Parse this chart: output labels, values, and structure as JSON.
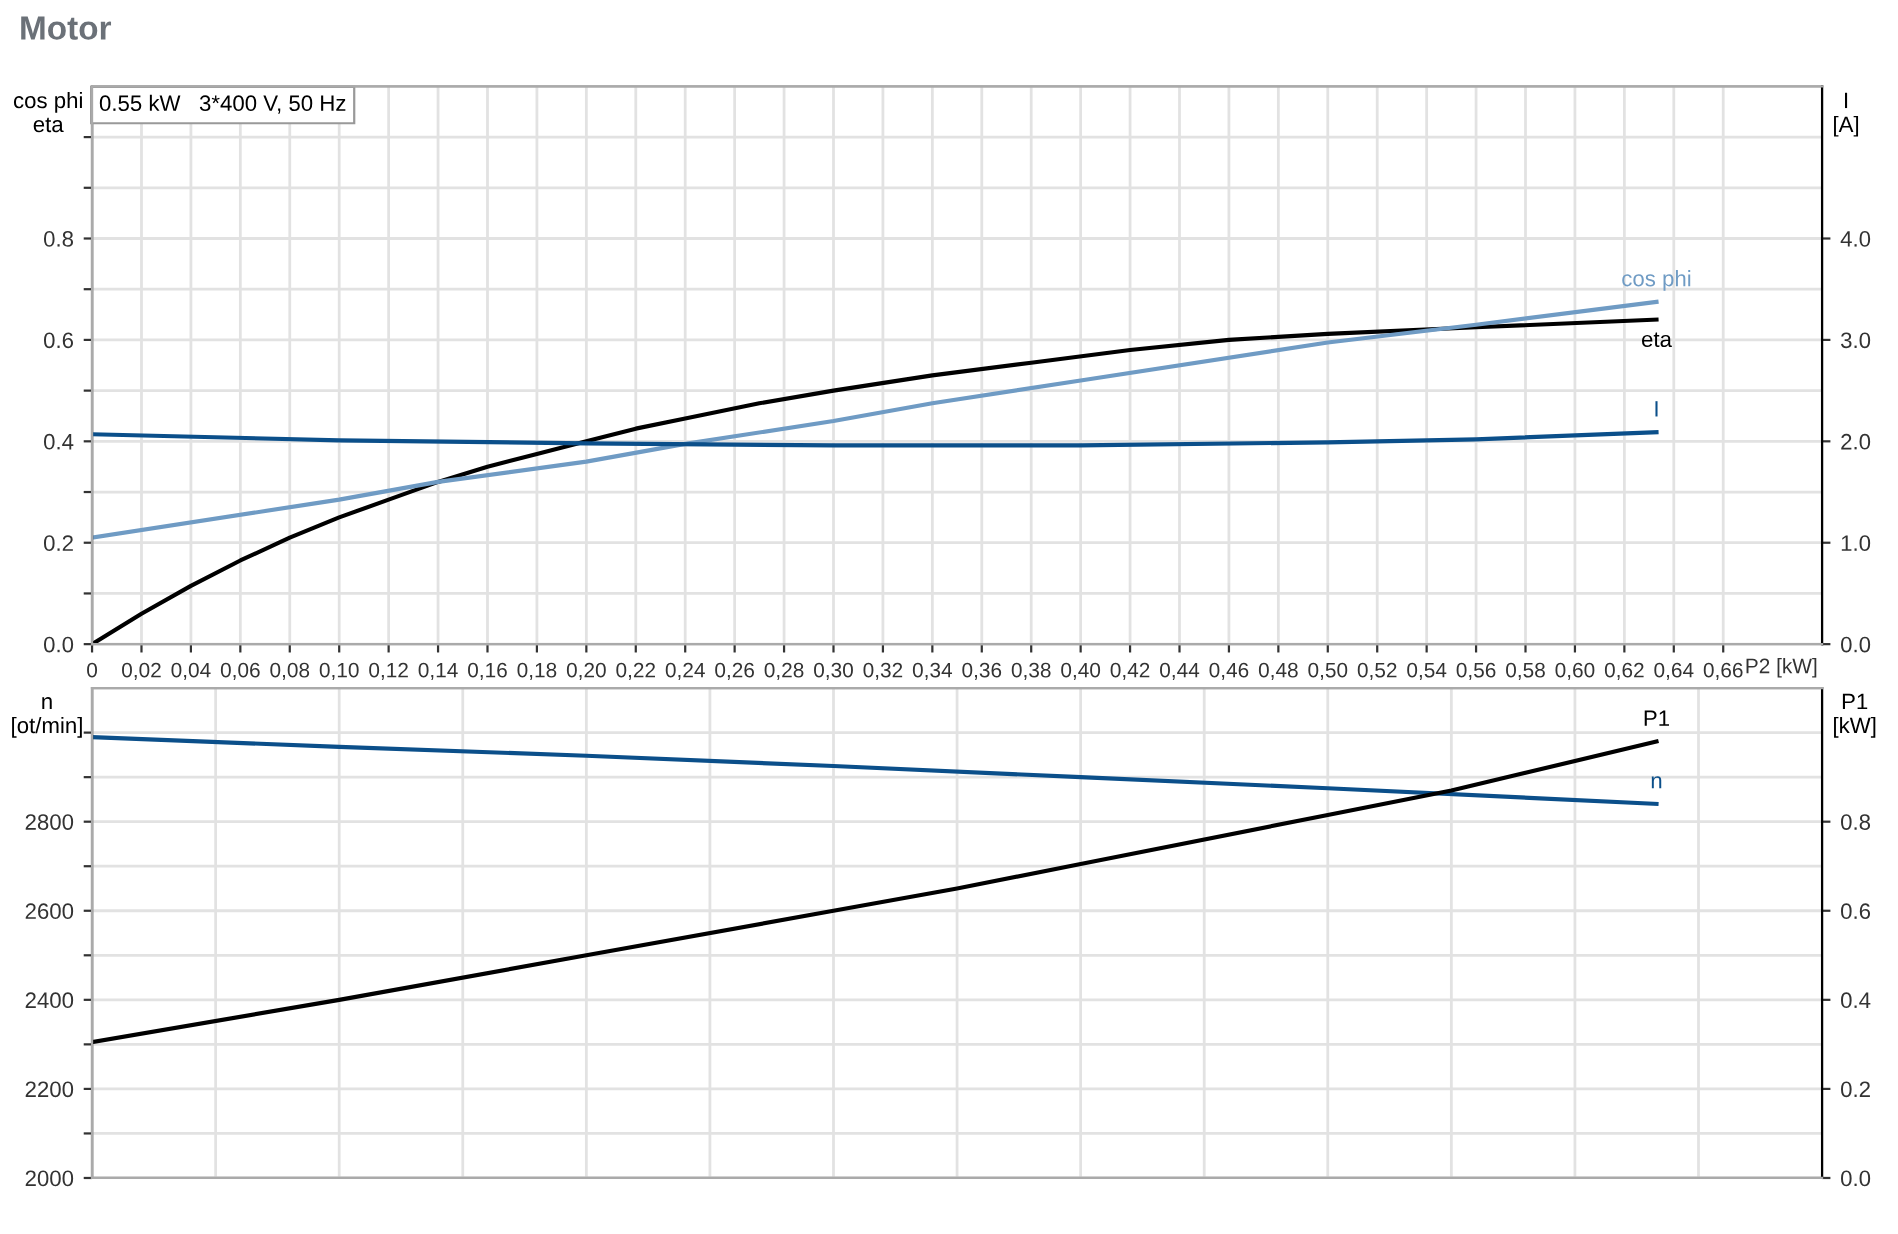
{
  "chart_data": [
    {
      "type": "line",
      "title": "Motor",
      "xlabel": "P2 [kW]",
      "ylabel": "cos phi\neta",
      "y2label": "I\n[A]",
      "annotations": [
        "0.55 kW   3*400 V, 50 Hz"
      ],
      "xlim": [
        0,
        0.7
      ],
      "ylim": [
        0,
        1.1
      ],
      "y2lim": [
        0,
        5.5
      ],
      "xticks": [
        {
          "value": 0,
          "label": "0"
        },
        {
          "value": 0.02,
          "label": "0,02"
        },
        {
          "value": 0.04,
          "label": "0,04"
        },
        {
          "value": 0.06,
          "label": "0,06"
        },
        {
          "value": 0.08,
          "label": "0,08"
        },
        {
          "value": 0.1,
          "label": "0,10"
        },
        {
          "value": 0.12,
          "label": "0,12"
        },
        {
          "value": 0.14,
          "label": "0,14"
        },
        {
          "value": 0.16,
          "label": "0,16"
        },
        {
          "value": 0.18,
          "label": "0,18"
        },
        {
          "value": 0.2,
          "label": "0,20"
        },
        {
          "value": 0.22,
          "label": "0,22"
        },
        {
          "value": 0.24,
          "label": "0,24"
        },
        {
          "value": 0.26,
          "label": "0,26"
        },
        {
          "value": 0.28,
          "label": "0,28"
        },
        {
          "value": 0.3,
          "label": "0,30"
        },
        {
          "value": 0.32,
          "label": "0,32"
        },
        {
          "value": 0.34,
          "label": "0,34"
        },
        {
          "value": 0.36,
          "label": "0,36"
        },
        {
          "value": 0.38,
          "label": "0,38"
        },
        {
          "value": 0.4,
          "label": "0,40"
        },
        {
          "value": 0.42,
          "label": "0,42"
        },
        {
          "value": 0.44,
          "label": "0,44"
        },
        {
          "value": 0.46,
          "label": "0,46"
        },
        {
          "value": 0.48,
          "label": "0,48"
        },
        {
          "value": 0.5,
          "label": "0,50"
        },
        {
          "value": 0.52,
          "label": "0,52"
        },
        {
          "value": 0.54,
          "label": "0,54"
        },
        {
          "value": 0.56,
          "label": "0,56"
        },
        {
          "value": 0.58,
          "label": "0,58"
        },
        {
          "value": 0.6,
          "label": "0,60"
        },
        {
          "value": 0.62,
          "label": "0,62"
        },
        {
          "value": 0.64,
          "label": "0,64"
        },
        {
          "value": 0.66,
          "label": "0,66"
        }
      ],
      "yticks": [
        {
          "value": 0,
          "label": "0.0"
        },
        {
          "value": 0.1,
          "label": null
        },
        {
          "value": 0.2,
          "label": "0.2"
        },
        {
          "value": 0.3,
          "label": null
        },
        {
          "value": 0.4,
          "label": "0.4"
        },
        {
          "value": 0.5,
          "label": null
        },
        {
          "value": 0.6,
          "label": "0.6"
        },
        {
          "value": 0.7,
          "label": null
        },
        {
          "value": 0.8,
          "label": "0.8"
        },
        {
          "value": 0.9,
          "label": null
        },
        {
          "value": 1.0,
          "label": null
        }
      ],
      "y2ticks": [
        {
          "value": 0,
          "label": "0.0"
        },
        {
          "value": 1,
          "label": "1.0"
        },
        {
          "value": 2,
          "label": "2.0"
        },
        {
          "value": 3,
          "label": "3.0"
        },
        {
          "value": 4,
          "label": "4.0"
        }
      ],
      "grid": true,
      "series": [
        {
          "name": "eta",
          "color": "#000000",
          "x": [
            0,
            0.02,
            0.04,
            0.06,
            0.08,
            0.1,
            0.12,
            0.14,
            0.16,
            0.18,
            0.2,
            0.22,
            0.24,
            0.27,
            0.3,
            0.34,
            0.38,
            0.42,
            0.46,
            0.5,
            0.56,
            0.633
          ],
          "values": [
            0,
            0.06,
            0.115,
            0.165,
            0.21,
            0.25,
            0.285,
            0.32,
            0.35,
            0.375,
            0.4,
            0.425,
            0.445,
            0.475,
            0.5,
            0.53,
            0.555,
            0.58,
            0.6,
            0.612,
            0.625,
            0.64
          ]
        },
        {
          "name": "cos phi",
          "color": "#6f9bc4",
          "x": [
            0,
            0.1,
            0.14,
            0.2,
            0.24,
            0.3,
            0.34,
            0.4,
            0.5,
            0.56,
            0.633
          ],
          "values": [
            0.21,
            0.285,
            0.32,
            0.36,
            0.395,
            0.44,
            0.475,
            0.52,
            0.595,
            0.63,
            0.675
          ]
        },
        {
          "name": "I",
          "color": "#0b4f8a",
          "axis": "y2",
          "x": [
            0,
            0.1,
            0.2,
            0.3,
            0.4,
            0.5,
            0.56,
            0.633
          ],
          "values": [
            2.07,
            2.01,
            1.98,
            1.96,
            1.96,
            1.99,
            2.02,
            2.09
          ]
        }
      ]
    },
    {
      "type": "line",
      "ylabel": "n\n[ot/min]",
      "y2label": "P1\n[kW]",
      "tick_labels": "y",
      "xlim": [
        0,
        0.7
      ],
      "ylim": [
        2000,
        3100
      ],
      "y2lim": [
        0,
        1.1
      ],
      "xticks": [
        {
          "value": 0,
          "label": null
        },
        {
          "value": 0.05,
          "label": null
        },
        {
          "value": 0.1,
          "label": null
        },
        {
          "value": 0.15,
          "label": null
        },
        {
          "value": 0.2,
          "label": null
        },
        {
          "value": 0.25,
          "label": null
        },
        {
          "value": 0.3,
          "label": null
        },
        {
          "value": 0.35,
          "label": null
        },
        {
          "value": 0.4,
          "label": null
        },
        {
          "value": 0.45,
          "label": null
        },
        {
          "value": 0.5,
          "label": null
        },
        {
          "value": 0.55,
          "label": null
        },
        {
          "value": 0.6,
          "label": null
        },
        {
          "value": 0.65,
          "label": null
        }
      ],
      "yticks": [
        2000,
        {
          "value": 2100,
          "label": null
        },
        2200,
        {
          "value": 2300,
          "label": null
        },
        2400,
        {
          "value": 2500,
          "label": null
        },
        2600,
        {
          "value": 2700,
          "label": null
        },
        2800,
        {
          "value": 2900,
          "label": null
        },
        {
          "value": 3000,
          "label": null
        }
      ],
      "y2ticks": [
        {
          "value": 0,
          "label": "0.0"
        },
        {
          "value": 0.2,
          "label": "0.2"
        },
        {
          "value": 0.4,
          "label": "0.4"
        },
        {
          "value": 0.6,
          "label": "0.6"
        },
        {
          "value": 0.8,
          "label": "0.8"
        }
      ],
      "grid": true,
      "series": [
        {
          "name": "n",
          "color": "#0b4f8a",
          "x": [
            0,
            0.1,
            0.2,
            0.3,
            0.4,
            0.5,
            0.633
          ],
          "values": [
            2990,
            2968,
            2948,
            2925,
            2900,
            2875,
            2840
          ]
        },
        {
          "name": "P1",
          "color": "#000000",
          "axis": "y2",
          "x": [
            0,
            0.1,
            0.2,
            0.3,
            0.35,
            0.4,
            0.5,
            0.55,
            0.633
          ],
          "values": [
            0.305,
            0.4,
            0.5,
            0.6,
            0.65,
            0.705,
            0.815,
            0.87,
            0.98
          ]
        }
      ]
    }
  ]
}
